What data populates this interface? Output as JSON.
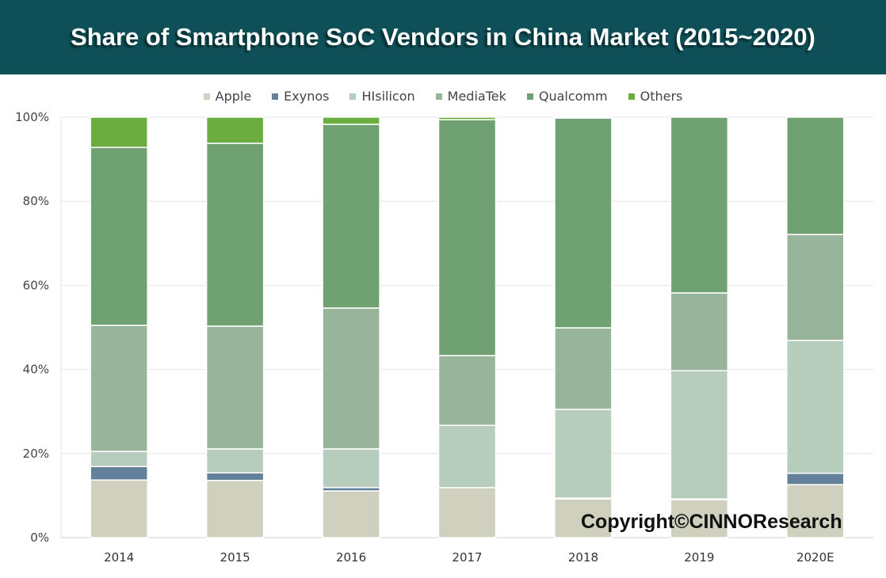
{
  "chart_data": {
    "type": "bar",
    "stacked": true,
    "title": "Share of Smartphone SoC Vendors in China Market (2015~2020)",
    "categories": [
      "2014",
      "2015",
      "2016",
      "2017",
      "2018",
      "2019",
      "2020E"
    ],
    "ylim": [
      0,
      100
    ],
    "yticks": [
      "0%",
      "20%",
      "40%",
      "60%",
      "80%",
      "100%"
    ],
    "grid": true,
    "legend_position": "top",
    "series": [
      {
        "name": "Apple",
        "color": "#cfd0bd",
        "values": [
          13.7,
          13.6,
          11.1,
          11.9,
          9.2,
          9.0,
          12.6
        ]
      },
      {
        "name": "Exynos",
        "color": "#63819a",
        "values": [
          3.2,
          1.8,
          0.8,
          0.0,
          0.2,
          0.2,
          2.7
        ]
      },
      {
        "name": "HIsilicon",
        "color": "#b6ccbd",
        "values": [
          3.6,
          5.7,
          9.2,
          14.8,
          21.1,
          30.5,
          31.6
        ]
      },
      {
        "name": "MediaTek",
        "color": "#98b59b",
        "values": [
          30.0,
          29.2,
          33.5,
          16.6,
          19.4,
          18.5,
          25.2
        ]
      },
      {
        "name": "Qualcomm",
        "color": "#70a172",
        "values": [
          42.3,
          43.5,
          43.7,
          56.1,
          49.9,
          41.8,
          27.9
        ]
      },
      {
        "name": "Others",
        "color": "#6bad3f",
        "values": [
          7.2,
          6.2,
          1.7,
          0.6,
          0.2,
          0.0,
          0.0
        ]
      }
    ]
  },
  "watermark": "Copyright©CINNOResearch"
}
